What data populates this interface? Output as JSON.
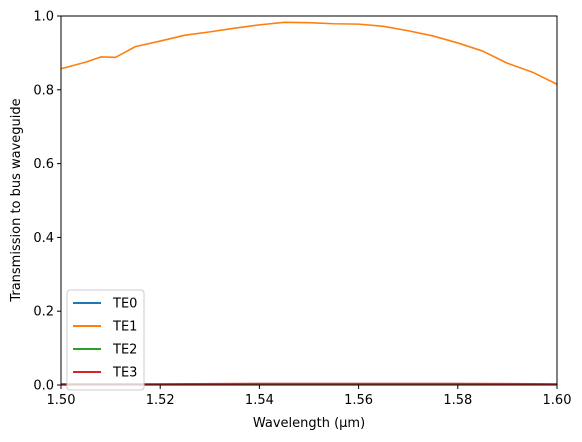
{
  "chart_data": {
    "type": "line",
    "title": "",
    "xlabel": "Wavelength (μm)",
    "ylabel": "Transmission to bus waveguide",
    "xlim": [
      1.5,
      1.6
    ],
    "ylim": [
      0.0,
      1.0
    ],
    "xticks": [
      "1.50",
      "1.52",
      "1.54",
      "1.56",
      "1.58",
      "1.60"
    ],
    "yticks": [
      "0.0",
      "0.2",
      "0.4",
      "0.6",
      "0.8",
      "1.0"
    ],
    "grid": false,
    "legend_position": "lower-left",
    "series": [
      {
        "name": "TE0",
        "color": "#1f77b4",
        "x": [
          1.5,
          1.52,
          1.54,
          1.56,
          1.58,
          1.6
        ],
        "y": [
          0.001,
          0.001,
          0.001,
          0.001,
          0.001,
          0.001
        ]
      },
      {
        "name": "TE1",
        "color": "#ff7f0e",
        "x": [
          1.5,
          1.505,
          1.508,
          1.511,
          1.515,
          1.52,
          1.525,
          1.53,
          1.535,
          1.54,
          1.545,
          1.55,
          1.555,
          1.56,
          1.565,
          1.57,
          1.575,
          1.58,
          1.585,
          1.59,
          1.595,
          1.6
        ],
        "y": [
          0.857,
          0.875,
          0.889,
          0.888,
          0.917,
          0.932,
          0.948,
          0.957,
          0.967,
          0.976,
          0.983,
          0.982,
          0.979,
          0.978,
          0.972,
          0.96,
          0.946,
          0.927,
          0.905,
          0.872,
          0.848,
          0.815
        ]
      },
      {
        "name": "TE2",
        "color": "#2ca02c",
        "x": [
          1.5,
          1.52,
          1.54,
          1.56,
          1.58,
          1.6
        ],
        "y": [
          0.002,
          0.002,
          0.002,
          0.002,
          0.002,
          0.002
        ]
      },
      {
        "name": "TE3",
        "color": "#d62728",
        "x": [
          1.5,
          1.52,
          1.54,
          1.56,
          1.58,
          1.6
        ],
        "y": [
          0.003,
          0.003,
          0.004,
          0.004,
          0.004,
          0.003
        ]
      }
    ]
  }
}
